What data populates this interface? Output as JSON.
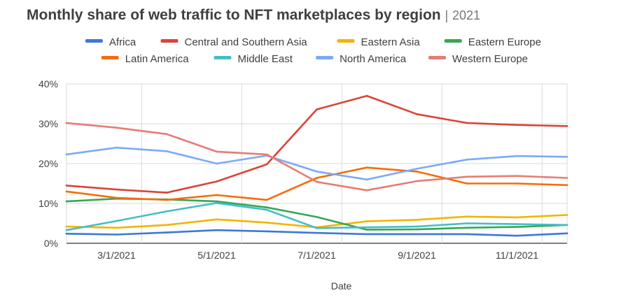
{
  "title": "Monthly share of web traffic to NFT marketplaces by region",
  "title_separator": "|",
  "subtitle": "2021",
  "chart_data": {
    "type": "line",
    "title": "Monthly share of web traffic to NFT marketplaces by region",
    "subtitle": "2021",
    "xlabel": "Date",
    "ylabel": "",
    "x": [
      "2/1/2021",
      "3/1/2021",
      "4/1/2021",
      "5/1/2021",
      "6/1/2021",
      "7/1/2021",
      "8/1/2021",
      "9/1/2021",
      "10/1/2021",
      "11/1/2021",
      "12/1/2021"
    ],
    "x_ticks": [
      "3/1/2021",
      "5/1/2021",
      "7/1/2021",
      "9/1/2021",
      "11/1/2021"
    ],
    "y_ticks": [
      "0%",
      "10%",
      "20%",
      "30%",
      "40%"
    ],
    "ylim": [
      0,
      40
    ],
    "grid": true,
    "legend_position": "top",
    "series": [
      {
        "name": "Africa",
        "color": "#3c78d8",
        "values": [
          2.4,
          2.2,
          2.7,
          3.3,
          3.0,
          2.6,
          2.3,
          2.3,
          2.3,
          1.9,
          2.5
        ]
      },
      {
        "name": "Central and Southern Asia",
        "color": "#db4437",
        "values": [
          14.5,
          13.5,
          12.7,
          15.5,
          19.8,
          33.6,
          37.0,
          32.4,
          30.2,
          29.7,
          29.4
        ]
      },
      {
        "name": "Eastern Asia",
        "color": "#f4b400",
        "values": [
          4.2,
          3.9,
          4.6,
          6.0,
          5.2,
          4.0,
          5.5,
          5.9,
          6.7,
          6.5,
          7.1
        ]
      },
      {
        "name": "Eastern Europe",
        "color": "#34a853",
        "values": [
          10.5,
          11.2,
          11.0,
          10.5,
          9.0,
          6.6,
          3.4,
          3.5,
          3.9,
          4.1,
          4.6
        ]
      },
      {
        "name": "Latin America",
        "color": "#f56d08",
        "values": [
          13.0,
          11.4,
          10.9,
          12.1,
          10.9,
          16.4,
          19.0,
          18.0,
          15.0,
          15.0,
          14.6
        ]
      },
      {
        "name": "Middle East",
        "color": "#46bdc6",
        "values": [
          3.3,
          5.6,
          8.0,
          10.1,
          8.4,
          3.8,
          4.0,
          4.2,
          5.0,
          4.8,
          4.6
        ]
      },
      {
        "name": "North America",
        "color": "#7baaf7",
        "values": [
          22.3,
          24.0,
          23.1,
          20.0,
          22.0,
          18.0,
          16.0,
          18.7,
          21.0,
          21.9,
          21.7
        ]
      },
      {
        "name": "Western Europe",
        "color": "#e67c73",
        "values": [
          30.2,
          29.0,
          27.4,
          23.0,
          22.3,
          15.4,
          13.3,
          15.6,
          16.7,
          16.9,
          16.4
        ]
      }
    ]
  }
}
